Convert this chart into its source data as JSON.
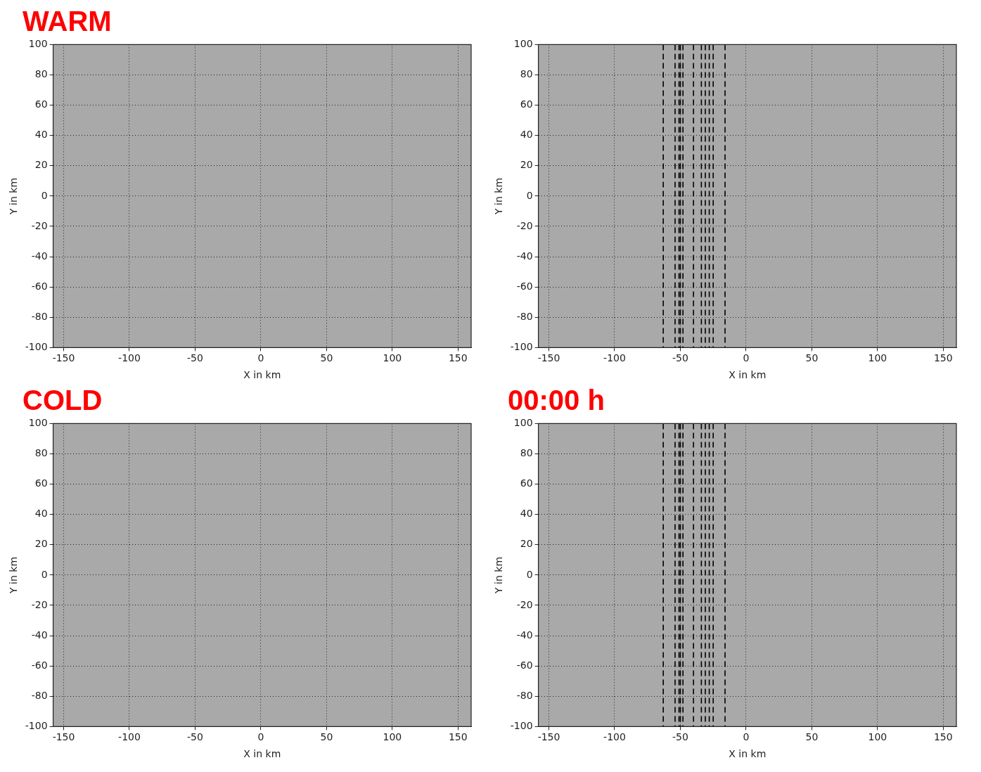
{
  "chart_data": [
    {
      "type": "line",
      "annotations": [
        "WARM"
      ],
      "xlabel": "X in km",
      "ylabel": "Y in km",
      "xlim": [
        -158,
        160
      ],
      "ylim": [
        -100,
        100
      ],
      "xticks": [
        -150,
        -100,
        -50,
        0,
        50,
        100,
        150
      ],
      "yticks": [
        -100,
        -80,
        -60,
        -40,
        -20,
        0,
        20,
        40,
        60,
        80,
        100
      ],
      "grid": true
    },
    {
      "type": "line",
      "xlabel": "X in km",
      "ylabel": "Y in km",
      "xlim": [
        -158,
        160
      ],
      "ylim": [
        -100,
        100
      ],
      "xticks": [
        -150,
        -100,
        -50,
        0,
        50,
        100,
        150
      ],
      "yticks": [
        -100,
        -80,
        -60,
        -40,
        -20,
        0,
        20,
        40,
        60,
        80,
        100
      ],
      "grid": true,
      "line_style": "dashed",
      "ref_lines": [
        {
          "axis": "x",
          "value": -63,
          "color": "#000000"
        },
        {
          "axis": "x",
          "value": -54,
          "color": "#000000"
        },
        {
          "axis": "x",
          "value": -51,
          "color": "#000000"
        },
        {
          "axis": "x",
          "value": -50,
          "color": "#000000"
        },
        {
          "axis": "x",
          "value": -48,
          "color": "#000000"
        },
        {
          "axis": "x",
          "value": -40,
          "color": "#000000"
        },
        {
          "axis": "x",
          "value": -34,
          "color": "#000000"
        },
        {
          "axis": "x",
          "value": -31,
          "color": "#000000"
        },
        {
          "axis": "x",
          "value": -28,
          "color": "#000000"
        },
        {
          "axis": "x",
          "value": -25,
          "color": "#000000"
        },
        {
          "axis": "x",
          "value": -16,
          "color": "#000000"
        }
      ]
    },
    {
      "type": "line",
      "annotations": [
        "COLD"
      ],
      "xlabel": "X in km",
      "ylabel": "Y in km",
      "xlim": [
        -158,
        160
      ],
      "ylim": [
        -100,
        100
      ],
      "xticks": [
        -150,
        -100,
        -50,
        0,
        50,
        100,
        150
      ],
      "yticks": [
        -100,
        -80,
        -60,
        -40,
        -20,
        0,
        20,
        40,
        60,
        80,
        100
      ],
      "grid": true
    },
    {
      "type": "line",
      "annotations": [
        "00:00 h"
      ],
      "xlabel": "X in km",
      "ylabel": "Y in km",
      "xlim": [
        -158,
        160
      ],
      "ylim": [
        -100,
        100
      ],
      "xticks": [
        -150,
        -100,
        -50,
        0,
        50,
        100,
        150
      ],
      "yticks": [
        -100,
        -80,
        -60,
        -40,
        -20,
        0,
        20,
        40,
        60,
        80,
        100
      ],
      "grid": true,
      "line_style": "dashed",
      "ref_lines": [
        {
          "axis": "x",
          "value": -63,
          "color": "#000000"
        },
        {
          "axis": "x",
          "value": -54,
          "color": "#000000"
        },
        {
          "axis": "x",
          "value": -51,
          "color": "#000000"
        },
        {
          "axis": "x",
          "value": -50,
          "color": "#000000"
        },
        {
          "axis": "x",
          "value": -48,
          "color": "#000000"
        },
        {
          "axis": "x",
          "value": -40,
          "color": "#000000"
        },
        {
          "axis": "x",
          "value": -34,
          "color": "#000000"
        },
        {
          "axis": "x",
          "value": -31,
          "color": "#000000"
        },
        {
          "axis": "x",
          "value": -28,
          "color": "#000000"
        },
        {
          "axis": "x",
          "value": -25,
          "color": "#000000"
        },
        {
          "axis": "x",
          "value": -16,
          "color": "#000000"
        }
      ]
    }
  ]
}
